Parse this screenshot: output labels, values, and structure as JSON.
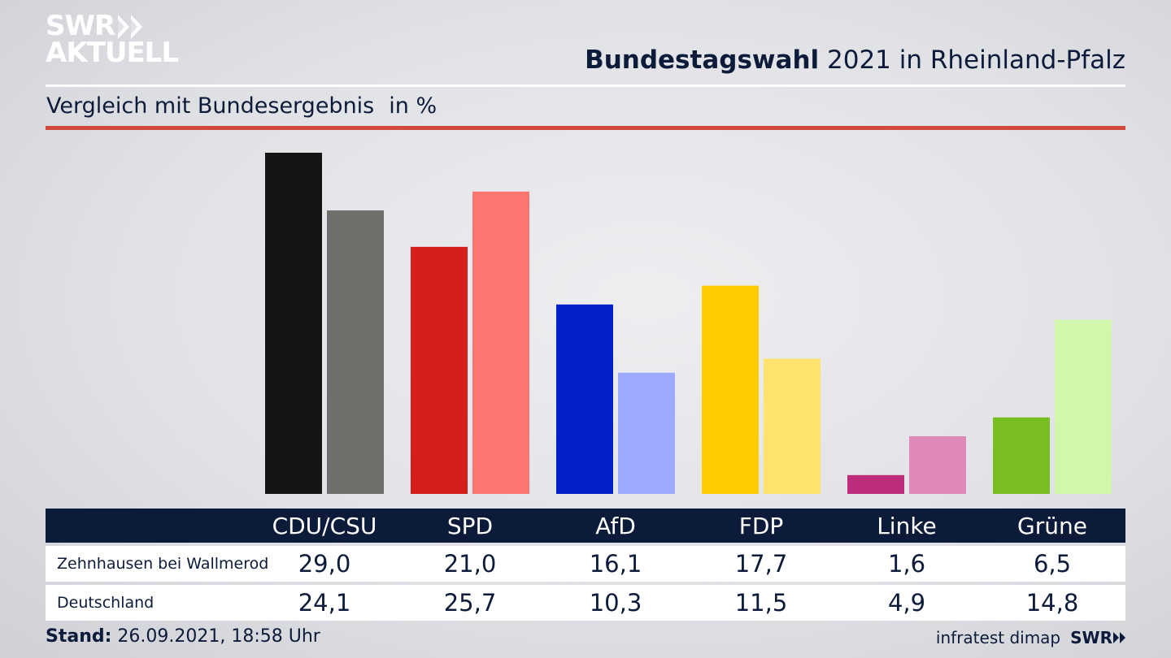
{
  "brand": {
    "line1": "SWR",
    "line2": "AKTUELL"
  },
  "header": {
    "title_bold": "Bundestagswahl",
    "title_rest": " 2021 in Rheinland-Pfalz"
  },
  "subtitle": {
    "text": "Vergleich mit Bundesergebnis",
    "unit": "in %"
  },
  "colors": {
    "Zehnhausen bei Wallmerod": [
      "#141414",
      "#d61e1e",
      "#0320c8",
      "#ffcc00",
      "#bd2c7a",
      "#78bd22"
    ],
    "Deutschland": [
      "#716f6c",
      "#ff7570",
      "#9eaafe",
      "#ffe16e",
      "#e088b8",
      "#d3f6ad"
    ]
  },
  "chart_data": {
    "type": "bar",
    "categories": [
      "CDU/CSU",
      "SPD",
      "AfD",
      "FDP",
      "Linke",
      "Grüne"
    ],
    "series": [
      {
        "name": "Zehnhausen bei Wallmerod",
        "values": [
          29.0,
          21.0,
          16.1,
          17.7,
          1.6,
          6.5
        ]
      },
      {
        "name": "Deutschland",
        "values": [
          24.1,
          25.7,
          10.3,
          11.5,
          4.9,
          14.8
        ]
      }
    ],
    "ylim": [
      0,
      29.0
    ],
    "grid": false
  },
  "table": {
    "rows": [
      {
        "label": "Zehnhausen bei Wallmerod",
        "values": [
          "29,0",
          "21,0",
          "16,1",
          "17,7",
          "1,6",
          "6,5"
        ]
      },
      {
        "label": "Deutschland",
        "values": [
          "24,1",
          "25,7",
          "10,3",
          "11,5",
          "4,9",
          "14,8"
        ]
      }
    ]
  },
  "footer": {
    "stand_label": "Stand:",
    "stand_value": " 26.09.2021, 18:58 Uhr",
    "source": "infratest dimap",
    "brand": "SWR"
  }
}
